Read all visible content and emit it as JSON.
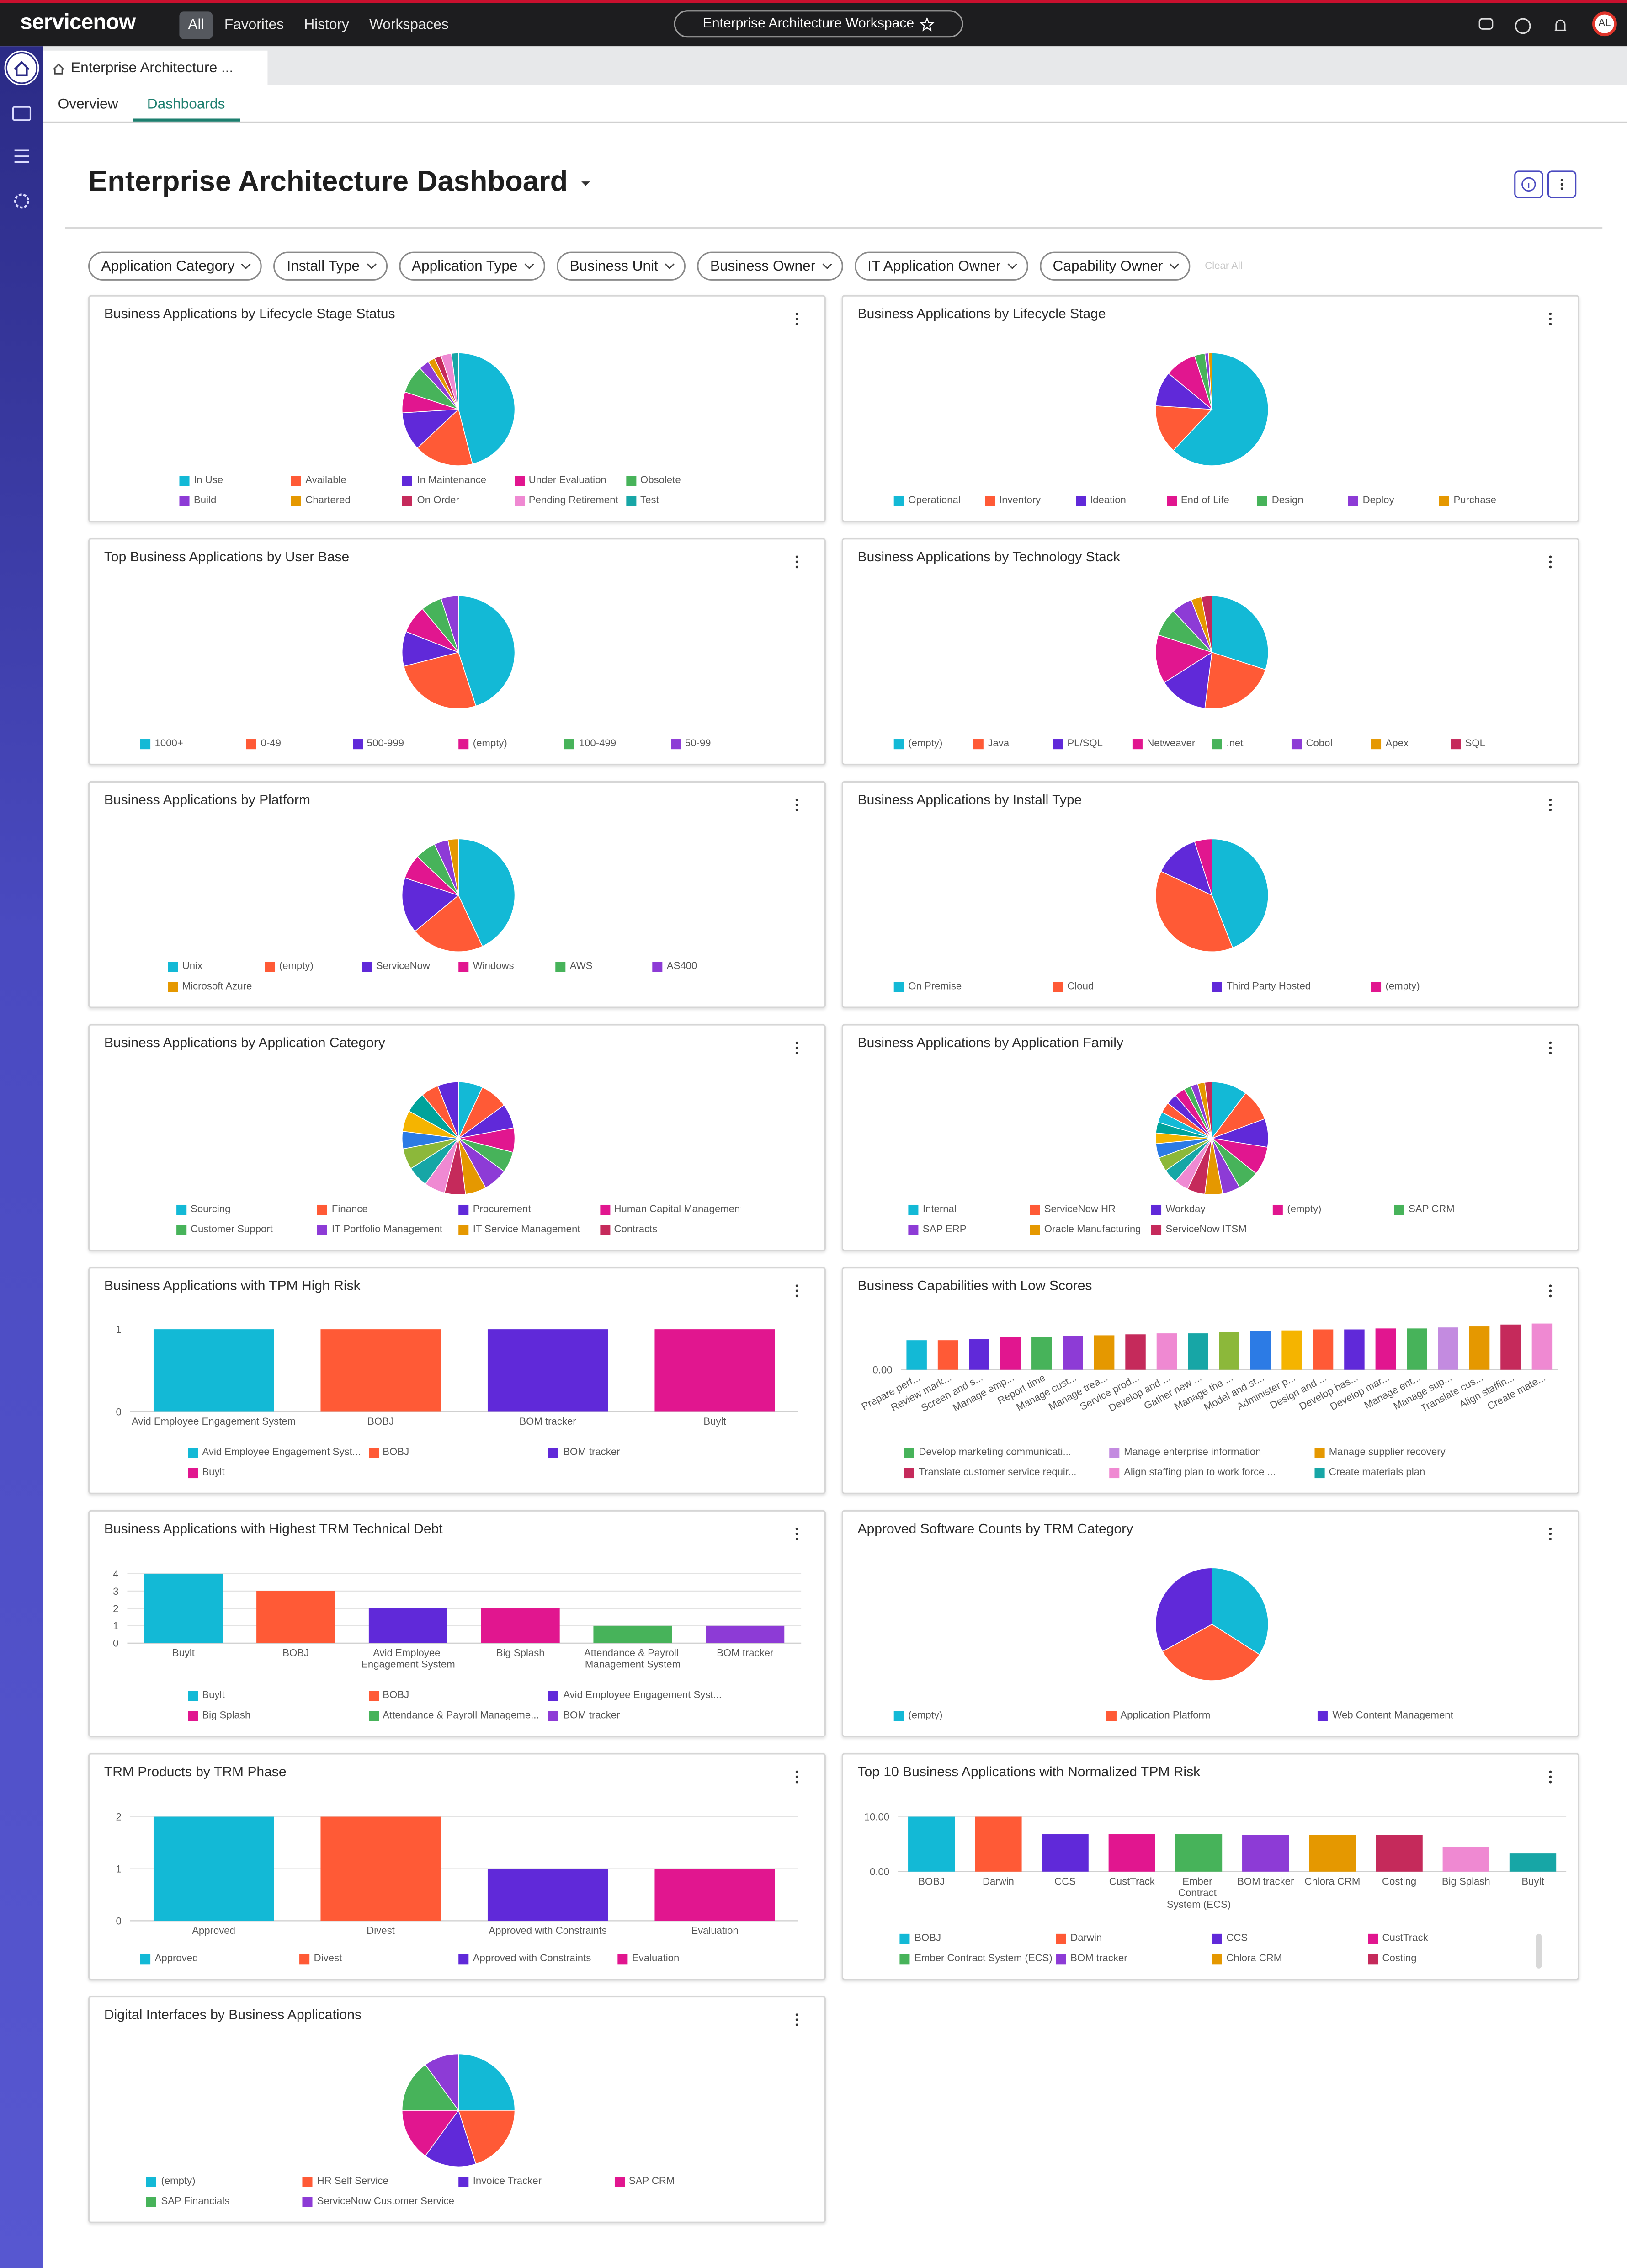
{
  "nav": {
    "logo": "servicenow",
    "menu": [
      "All",
      "Favorites",
      "History",
      "Workspaces"
    ],
    "workspace": "Enterprise Architecture Workspace",
    "avatar": "AL"
  },
  "tab": "Enterprise Architecture ...",
  "subtabs": [
    "Overview",
    "Dashboards"
  ],
  "dashboard_title": "Enterprise Architecture Dashboard",
  "filters": [
    "Application Category",
    "Install Type",
    "Application Type",
    "Business Unit",
    "Business Owner",
    "IT Application Owner",
    "Capability Owner"
  ],
  "clear_all": "Clear All",
  "chart_data": [
    {
      "type": "pie",
      "title": "Business Applications by Lifecycle Stage Status",
      "categories": [
        "In Use",
        "Available",
        "In Maintenance",
        "Under Evaluation",
        "Obsolete",
        "Build",
        "Chartered",
        "On Order",
        "Pending Retirement",
        "Test"
      ],
      "values": [
        46,
        17,
        11,
        6,
        8,
        3,
        2,
        2,
        3,
        2
      ],
      "colors": [
        "#13b9d6",
        "#ff5a36",
        "#6029d9",
        "#e1168f",
        "#47b35a",
        "#8d3bd6",
        "#e59800",
        "#c52a5b",
        "#ef89d2",
        "#17a6a6"
      ]
    },
    {
      "type": "pie",
      "title": "Business Applications by Lifecycle Stage",
      "categories": [
        "Operational",
        "Inventory",
        "Ideation",
        "End of Life",
        "Design",
        "Deploy",
        "Purchase"
      ],
      "values": [
        62,
        14,
        10,
        9,
        3,
        1,
        1
      ],
      "colors": [
        "#13b9d6",
        "#ff5a36",
        "#6029d9",
        "#e1168f",
        "#47b35a",
        "#8d3bd6",
        "#e59800"
      ]
    },
    {
      "type": "pie",
      "title": "Top Business Applications by User Base",
      "categories": [
        "1000+",
        "0-49",
        "500-999",
        "(empty)",
        "100-499",
        "50-99"
      ],
      "values": [
        45,
        26,
        10,
        8,
        6,
        5
      ],
      "colors": [
        "#13b9d6",
        "#ff5a36",
        "#6029d9",
        "#e1168f",
        "#47b35a",
        "#8d3bd6"
      ]
    },
    {
      "type": "pie",
      "title": "Business Applications by Technology Stack",
      "categories": [
        "(empty)",
        "Java",
        "PL/SQL",
        "Netweaver",
        ".net",
        "Cobol",
        "Apex",
        "SQL"
      ],
      "values": [
        30,
        22,
        14,
        14,
        8,
        6,
        3,
        3
      ],
      "colors": [
        "#13b9d6",
        "#ff5a36",
        "#6029d9",
        "#e1168f",
        "#47b35a",
        "#8d3bd6",
        "#e59800",
        "#c52a5b"
      ]
    },
    {
      "type": "pie",
      "title": "Business Applications by Platform",
      "categories": [
        "Unix",
        "(empty)",
        "ServiceNow",
        "Windows",
        "AWS",
        "AS400",
        "Microsoft Azure"
      ],
      "values": [
        43,
        21,
        16,
        7,
        6,
        4,
        3
      ],
      "colors": [
        "#13b9d6",
        "#ff5a36",
        "#6029d9",
        "#e1168f",
        "#47b35a",
        "#8d3bd6",
        "#e59800"
      ]
    },
    {
      "type": "pie",
      "title": "Business Applications by Install Type",
      "categories": [
        "On Premise",
        "Cloud",
        "Third Party Hosted",
        "(empty)"
      ],
      "values": [
        44,
        38,
        13,
        5
      ],
      "colors": [
        "#13b9d6",
        "#ff5a36",
        "#6029d9",
        "#e1168f"
      ]
    },
    {
      "type": "pie",
      "title": "Business Applications by Application Category",
      "categories": [
        "Sourcing",
        "Finance",
        "Procurement",
        "Human Capital Management",
        "Customer Support",
        "IT Portfolio Management",
        "IT Service Management",
        "Contracts",
        null,
        null,
        null,
        null,
        null,
        null,
        null,
        null
      ],
      "values": [
        7,
        8,
        7,
        7,
        6,
        7,
        6,
        6,
        6,
        6,
        6,
        5,
        6,
        6,
        5,
        6
      ],
      "colors": [
        "#13b9d6",
        "#ff5a36",
        "#6029d9",
        "#e1168f",
        "#47b35a",
        "#8d3bd6",
        "#e59800",
        "#c52a5b",
        "#ef89d2",
        "#17a6a6",
        "#8cb83a",
        "#2c7be5",
        "#f5b400",
        "#00a39b",
        "#ff5a36",
        "#6029d9"
      ]
    },
    {
      "type": "pie",
      "title": "Business Applications by Application Family",
      "categories": [
        "Internal",
        "ServiceNow HR",
        "Workday",
        "(empty)",
        "SAP CRM",
        "SAP ERP",
        "Oracle Manufacturing",
        "ServiceNow ITSM",
        null,
        null,
        null,
        null,
        null,
        null,
        null,
        null,
        null,
        null,
        null,
        null,
        null,
        null
      ],
      "values": [
        10,
        9,
        8,
        8,
        6,
        5,
        5,
        5,
        4,
        4,
        4,
        4,
        3,
        3,
        3,
        3,
        3,
        3,
        2,
        2,
        2,
        2
      ],
      "colors": [
        "#13b9d6",
        "#ff5a36",
        "#6029d9",
        "#e1168f",
        "#47b35a",
        "#8d3bd6",
        "#e59800",
        "#c52a5b",
        "#ef89d2",
        "#17a6a6",
        "#8cb83a",
        "#2c7be5",
        "#f5b400",
        "#00a39b",
        "#13b9d6",
        "#ff5a36",
        "#6029d9",
        "#e1168f",
        "#47b35a",
        "#8d3bd6",
        "#e59800",
        "#c52a5b"
      ]
    },
    {
      "type": "bar",
      "title": "Business Applications with TPM High Risk",
      "categories": [
        "Avid Employee Engagement System",
        "BOBJ",
        "BOM tracker",
        "Buylt"
      ],
      "values": [
        1,
        1,
        1,
        1
      ],
      "colors": [
        "#13b9d6",
        "#ff5a36",
        "#6029d9",
        "#e1168f"
      ],
      "legend": [
        "Avid Employee Engagement Syst...",
        "BOBJ",
        "BOM tracker",
        "Buylt"
      ],
      "ylim": [
        0,
        1
      ],
      "yticks": [
        0,
        1
      ],
      "grid": false
    },
    {
      "type": "bar",
      "title": "Business Capabilities with Low Scores",
      "categories": [
        "Prepare perf...",
        "Review mark...",
        "Screen and s...",
        "Manage emp...",
        "Report time",
        "Manage cust...",
        "Manage trea...",
        "Service prod...",
        "Develop and ...",
        "Gather new ...",
        "Manage the ...",
        "Model and st...",
        "Administer p...",
        "Design and ...",
        "Develop bas...",
        "Develop mar...",
        "Manage ent...",
        "Manage sup...",
        "Translate cus...",
        "Align staffin...",
        "Create mate..."
      ],
      "values": [
        0.6,
        0.6,
        0.62,
        0.66,
        0.66,
        0.68,
        0.7,
        0.72,
        0.74,
        0.74,
        0.76,
        0.78,
        0.8,
        0.82,
        0.82,
        0.84,
        0.84,
        0.86,
        0.88,
        0.92,
        0.94
      ],
      "colors": [
        "#13b9d6",
        "#ff5a36",
        "#6029d9",
        "#e1168f",
        "#47b35a",
        "#8d3bd6",
        "#e59800",
        "#c52a5b",
        "#ef89d2",
        "#17a6a6",
        "#8cb83a",
        "#2c7be5",
        "#f5b400",
        "#ff5a36",
        "#6029d9",
        "#e1168f",
        "#47b35a",
        "#c38be0",
        "#e59800",
        "#c52a5b",
        "#ef89d2"
      ],
      "legend": [
        "Develop marketing communicati...",
        "Manage enterprise information",
        "Manage supplier recovery",
        "Translate customer service requir...",
        "Align staffing plan to work force ...",
        "Create materials plan"
      ],
      "legend_colors": [
        "#47b35a",
        "#c38be0",
        "#e59800",
        "#c52a5b",
        "#ef89d2",
        "#17a6a6"
      ],
      "ylim": [
        0,
        1
      ],
      "yticks": [
        {
          "value": 0,
          "label": "0.00"
        }
      ],
      "grid": false
    },
    {
      "type": "bar",
      "title": "Business Applications with Highest TRM Technical Debt",
      "categories": [
        "Buylt",
        "BOBJ",
        "Avid Employee Engagement System",
        "Big Splash",
        "Attendance & Payroll Management System",
        "BOM tracker"
      ],
      "values": [
        4,
        3,
        2,
        2,
        1,
        1
      ],
      "colors": [
        "#13b9d6",
        "#ff5a36",
        "#6029d9",
        "#e1168f",
        "#47b35a",
        "#8d3bd6"
      ],
      "legend": [
        "Buylt",
        "BOBJ",
        "Avid Employee Engagement Syst...",
        "Big Splash",
        "Attendance & Payroll Manageme...",
        "BOM tracker"
      ],
      "ylim": [
        0,
        4
      ],
      "yticks": [
        0,
        1,
        2,
        3,
        4
      ],
      "grid": true
    },
    {
      "type": "pie",
      "title": "Approved Software Counts by TRM Category",
      "categories": [
        "(empty)",
        "Application Platform",
        "Web Content Management"
      ],
      "values": [
        34,
        33,
        33
      ],
      "colors": [
        "#13b9d6",
        "#ff5a36",
        "#6029d9"
      ]
    },
    {
      "type": "bar",
      "title": "TRM Products by TRM Phase",
      "categories": [
        "Approved",
        "Divest",
        "Approved with Constraints",
        "Evaluation"
      ],
      "values": [
        2,
        2,
        1,
        1
      ],
      "colors": [
        "#13b9d6",
        "#ff5a36",
        "#6029d9",
        "#e1168f"
      ],
      "ylim": [
        0,
        2
      ],
      "yticks": [
        0,
        1,
        2
      ],
      "grid": true
    },
    {
      "type": "bar",
      "title": "Top 10 Business Applications with Normalized TPM Risk",
      "categories": [
        "BOBJ",
        "Darwin",
        "CCS",
        "CustTrack",
        "Ember Contract System (ECS)",
        "BOM tracker",
        "Chlora CRM",
        "Costing",
        "Big Splash",
        "Buylt"
      ],
      "values": [
        10,
        10,
        6.8,
        6.8,
        6.8,
        6.7,
        6.7,
        6.7,
        4.5,
        3.3
      ],
      "colors": [
        "#13b9d6",
        "#ff5a36",
        "#6029d9",
        "#e1168f",
        "#47b35a",
        "#8d3bd6",
        "#e59800",
        "#c52a5b",
        "#ef89d2",
        "#17a6a6"
      ],
      "ylim": [
        0,
        10
      ],
      "yticks": [
        {
          "value": 0,
          "label": "0.00"
        },
        {
          "value": 10,
          "label": "10.00"
        }
      ],
      "grid": true
    },
    {
      "type": "pie",
      "title": "Digital Interfaces by Business Applications",
      "categories": [
        "(empty)",
        "HR Self Service",
        "Invoice Tracker",
        "SAP CRM",
        "SAP Financials",
        "ServiceNow Customer Service"
      ],
      "values": [
        25,
        20,
        15,
        15,
        15,
        10
      ],
      "colors": [
        "#13b9d6",
        "#ff5a36",
        "#6029d9",
        "#e1168f",
        "#47b35a",
        "#8d3bd6"
      ]
    }
  ]
}
